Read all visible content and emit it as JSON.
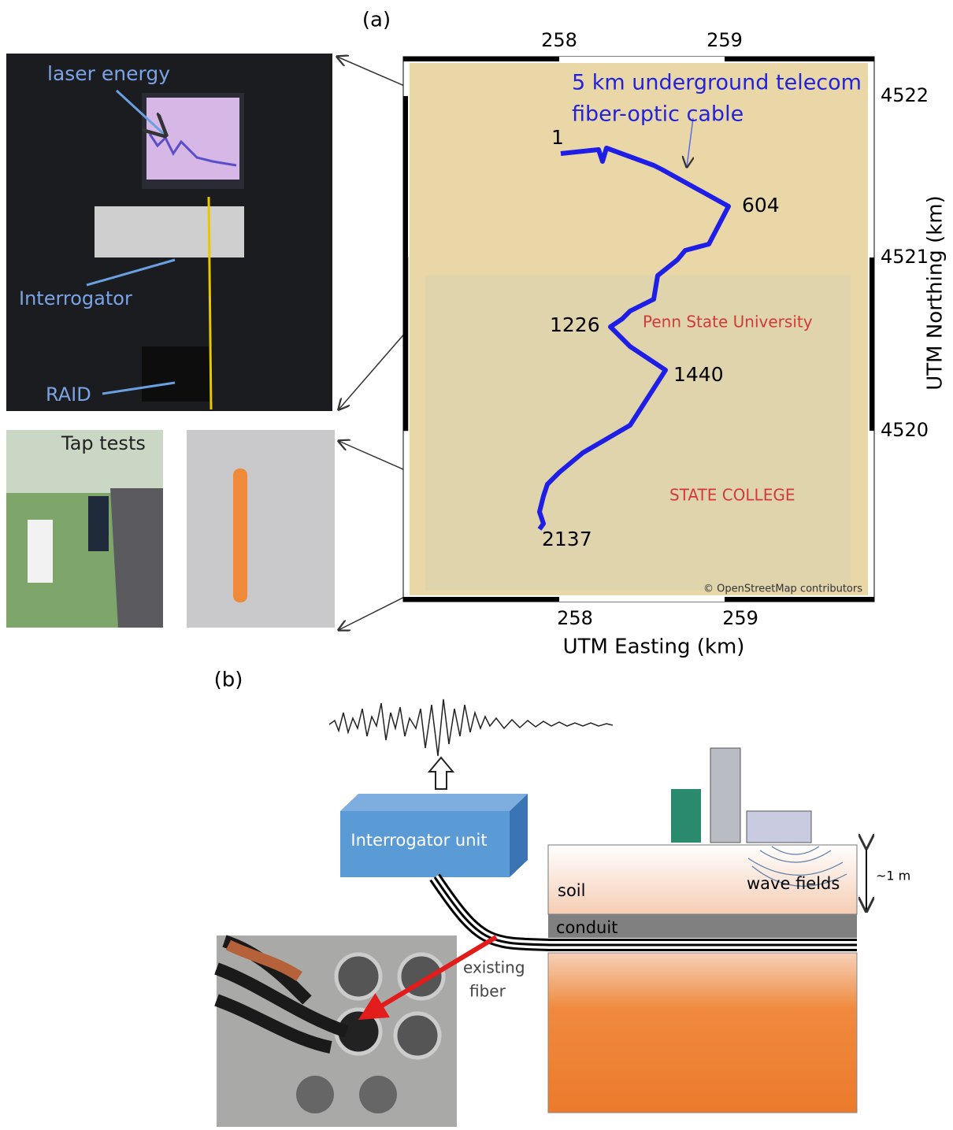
{
  "panel_a": {
    "label": "(a)",
    "photos": {
      "laser_energy": "laser energy",
      "interrogator": "Interrogator",
      "raid": "RAID",
      "tap_tests": "Tap tests"
    },
    "map": {
      "x_ticks_top": [
        "258",
        "259"
      ],
      "x_ticks_bottom": [
        "258",
        "259"
      ],
      "y_ticks": [
        "4522",
        "4521",
        "4520"
      ],
      "x_label": "UTM Easting (km)",
      "y_label": "UTM Northing (km)",
      "cable_note": [
        "5 km underground telecom",
        "fiber-optic cable"
      ],
      "channels": [
        "1",
        "604",
        "1226",
        "1440",
        "2137"
      ],
      "places": [
        "Penn State University",
        "STATE COLLEGE"
      ],
      "credit": "© OpenStreetMap contributors"
    }
  },
  "panel_b": {
    "label": "(b)",
    "interrogator_unit": "Interrogator unit",
    "soil": "soil",
    "conduit": "conduit",
    "wave_fields": "wave fields",
    "depth": "~1 m",
    "existing_fiber": [
      "existing",
      "fiber"
    ]
  }
}
